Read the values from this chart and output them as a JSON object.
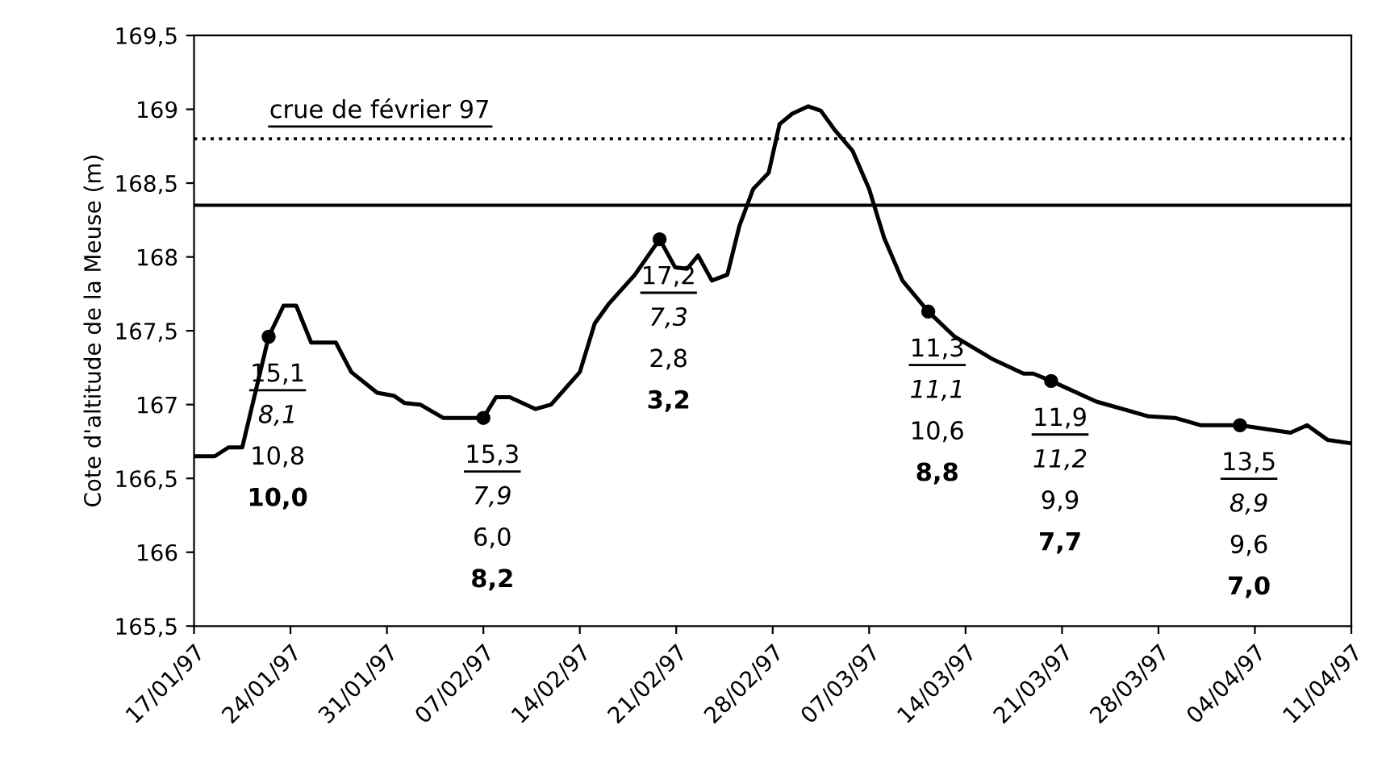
{
  "chart_data": {
    "type": "line",
    "ylabel": "Cote d'altitude de la Meuse (m)",
    "xlim": [
      "1997-01-17",
      "1997-04-11"
    ],
    "xticks": [
      {
        "value": "1997-01-17",
        "label": "17/01/97"
      },
      {
        "value": "1997-01-24",
        "label": "24/01/97"
      },
      {
        "value": "1997-01-31",
        "label": "31/01/97"
      },
      {
        "value": "1997-02-07",
        "label": "07/02/97"
      },
      {
        "value": "1997-02-14",
        "label": "14/02/97"
      },
      {
        "value": "1997-02-21",
        "label": "21/02/97"
      },
      {
        "value": "1997-02-28",
        "label": "28/02/97"
      },
      {
        "value": "1997-03-07",
        "label": "07/03/97"
      },
      {
        "value": "1997-03-14",
        "label": "14/03/97"
      },
      {
        "value": "1997-03-21",
        "label": "21/03/97"
      },
      {
        "value": "1997-03-28",
        "label": "28/03/97"
      },
      {
        "value": "1997-04-04",
        "label": "04/04/97"
      },
      {
        "value": "1997-04-11",
        "label": "11/04/97"
      }
    ],
    "ylim": [
      165.5,
      169.5
    ],
    "yticks": [
      {
        "value": 165.5,
        "label": "165,5"
      },
      166,
      {
        "value": 166.5,
        "label": "166,5"
      },
      167,
      {
        "value": 167.5,
        "label": "167,5"
      },
      168,
      {
        "value": 168.5,
        "label": "168,5"
      },
      169,
      {
        "value": 169.5,
        "label": "169,5"
      }
    ],
    "grid": false,
    "legend": false,
    "series": [
      {
        "color": "#000000",
        "marker": "none",
        "line_style": "solid",
        "x": [
          "1997-01-17",
          "1997-01-18T12:00",
          "1997-01-19T12:00",
          "1997-01-20T12:00",
          "1997-01-22T10:00",
          "1997-01-23T12:00",
          "1997-01-24T10:00",
          "1997-01-25T12:00",
          "1997-01-27T07:00",
          "1997-01-28T10:00",
          "1997-01-30T07:00",
          "1997-01-31T12:00",
          "1997-02-01T07:00",
          "1997-02-02T10:00",
          "1997-02-04T02:00",
          "1997-02-05T19:00",
          "1997-02-07",
          "1997-02-07T22:00",
          "1997-02-08T22:00",
          "1997-02-10T19:00",
          "1997-02-11T22:00",
          "1997-02-14",
          "1997-02-15T02:00",
          "1997-02-16T02:00",
          "1997-02-18",
          "1997-02-19T19:00",
          "1997-02-20T22:00",
          "1997-02-21T19:00",
          "1997-02-22T14:00",
          "1997-02-23T14:00",
          "1997-02-24T17:00",
          "1997-02-25T14:00",
          "1997-02-26T14:00",
          "1997-02-27T17:00",
          "1997-02-28T12:00",
          "1997-03-01T10:00",
          "1997-03-02T14:00",
          "1997-03-03T12:00",
          "1997-03-04T12:00",
          "1997-03-05T19:00",
          "1997-03-07",
          "1997-03-08T02:00",
          "1997-03-09T10:00",
          "1997-03-11T07:00",
          "1997-03-13T05:00",
          "1997-03-15T22:00",
          "1997-03-18T05:00",
          "1997-03-18T22:00",
          "1997-03-20T05:00",
          "1997-03-23T12:00",
          "1997-03-27T07:00",
          "1997-03-29T05:00",
          "1997-03-31T02:00",
          "1997-04-02T22:00",
          "1997-04-06T14:00",
          "1997-04-07T19:00",
          "1997-04-09T07:00",
          "1997-04-10T19:00"
        ],
        "values": [
          166.65,
          166.65,
          166.71,
          166.71,
          167.46,
          167.67,
          167.67,
          167.42,
          167.42,
          167.22,
          167.08,
          167.06,
          167.01,
          167.0,
          166.91,
          166.91,
          166.91,
          167.05,
          167.05,
          166.97,
          167.0,
          167.22,
          167.55,
          167.68,
          167.88,
          168.12,
          167.93,
          167.92,
          168.01,
          167.84,
          167.88,
          168.21,
          168.46,
          168.57,
          168.9,
          168.97,
          169.02,
          168.99,
          168.86,
          168.72,
          168.46,
          168.13,
          167.84,
          167.63,
          167.46,
          167.31,
          167.21,
          167.21,
          167.16,
          167.02,
          166.92,
          166.91,
          166.86,
          166.86,
          166.81,
          166.86,
          166.76,
          166.74
        ]
      },
      {
        "type": "scatter",
        "color": "#000000",
        "marker": "circle",
        "x": [
          "1997-01-22T10:00",
          "1997-02-07",
          "1997-02-19T19:00",
          "1997-03-11T07:00",
          "1997-03-20T05:00",
          "1997-04-02T22:00"
        ],
        "values": [
          167.46,
          166.91,
          168.12,
          167.63,
          167.16,
          166.86
        ]
      }
    ],
    "ref_lines": [
      {
        "axis": "y",
        "value": 168.8,
        "label": "crue de février 97",
        "line_style": "dotted",
        "color": "#000000"
      },
      {
        "axis": "y",
        "value": 168.35,
        "line_style": "solid",
        "color": "#000000"
      }
    ],
    "annotations": [
      "15,1",
      "8,1",
      "10,8",
      "10,0",
      "15,3",
      "7,9",
      "6,0",
      "8,2",
      "17,2",
      "7,3",
      "2,8",
      "3,2",
      "11,3",
      "11,1",
      "10,6",
      "8,8",
      "11,9",
      "11,2",
      "9,9",
      "7,7",
      "13,5",
      "8,9",
      "9,6",
      "7,0"
    ]
  }
}
